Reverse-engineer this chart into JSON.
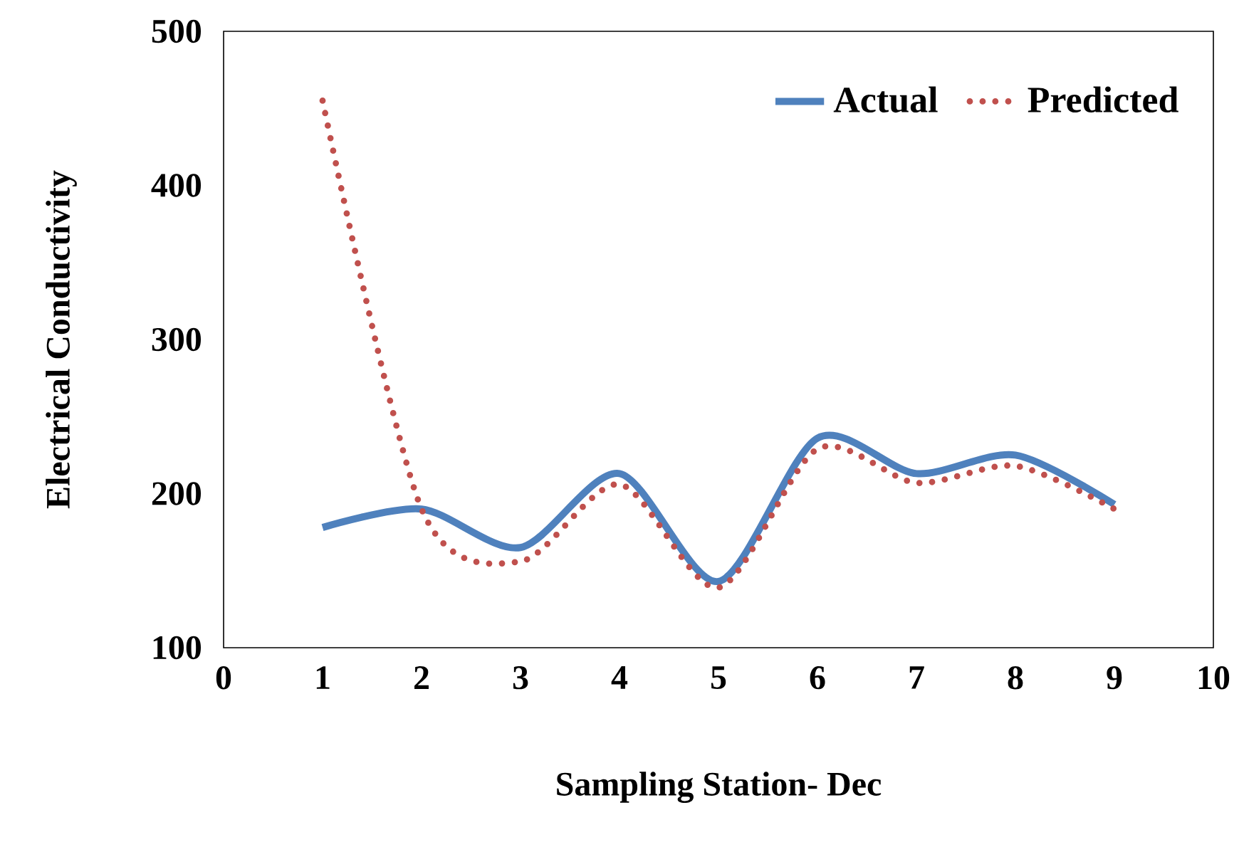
{
  "chart_data": {
    "type": "line",
    "xlabel": "Sampling Station- Dec",
    "ylabel": "Electrical Conductivity",
    "x": [
      1,
      2,
      3,
      4,
      5,
      6,
      7,
      8,
      9
    ],
    "series": [
      {
        "name": "Actual",
        "color": "#4f81bd",
        "line_style": "solid",
        "values": [
          178,
          190,
          165,
          213,
          143,
          236,
          213,
          225,
          193
        ]
      },
      {
        "name": "Predicted",
        "color": "#c0504d",
        "line_style": "dotted",
        "values": [
          455,
          190,
          156,
          206,
          139,
          229,
          207,
          218,
          190
        ]
      }
    ],
    "xlim": [
      0,
      10
    ],
    "xticks": [
      0,
      1,
      2,
      3,
      4,
      5,
      6,
      7,
      8,
      9,
      10
    ],
    "ylim": [
      100,
      500
    ],
    "yticks": [
      100,
      200,
      300,
      400,
      500
    ],
    "grid": false,
    "legend": "top right",
    "marker": "none"
  }
}
